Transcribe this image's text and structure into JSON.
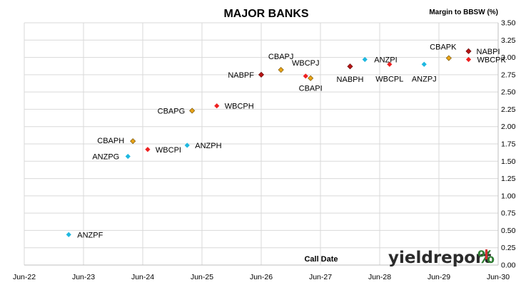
{
  "chart_data": {
    "type": "scatter",
    "title": "MAJOR BANKS",
    "xlabel": "Call Date",
    "ylabel": "Margin to BBSW (%)",
    "xticks": [
      "Jun-22",
      "Jun-23",
      "Jun-24",
      "Jun-25",
      "Jun-26",
      "Jun-27",
      "Jun-28",
      "Jun-29",
      "Jun-30"
    ],
    "xlim": [
      "2022-06",
      "2030-06"
    ],
    "ylim": [
      0,
      3.5
    ],
    "ystep": 0.25,
    "grid": true,
    "colors": {
      "ANZ": "#1fb8e0",
      "CBA": "#e8a317",
      "NAB": "#b81414",
      "WBC": "#ee2020"
    },
    "points": [
      {
        "label": "ANZPF",
        "date": "2023-03",
        "y": 0.44,
        "bank": "ANZ"
      },
      {
        "label": "ANZPG",
        "date": "2024-03",
        "y": 1.57,
        "bank": "ANZ"
      },
      {
        "label": "CBAPH",
        "date": "2024-04",
        "y": 1.79,
        "bank": "CBA"
      },
      {
        "label": "WBCPI",
        "date": "2024-07",
        "y": 1.67,
        "bank": "WBC"
      },
      {
        "label": "ANZPH",
        "date": "2025-03",
        "y": 1.73,
        "bank": "ANZ"
      },
      {
        "label": "CBAPG",
        "date": "2025-04",
        "y": 2.23,
        "bank": "CBA"
      },
      {
        "label": "WBCPH",
        "date": "2025-09",
        "y": 2.3,
        "bank": "WBC"
      },
      {
        "label": "NABPF",
        "date": "2026-06",
        "y": 2.75,
        "bank": "NAB"
      },
      {
        "label": "CBAPJ",
        "date": "2026-10",
        "y": 2.82,
        "bank": "CBA"
      },
      {
        "label": "WBCPJ",
        "date": "2027-03",
        "y": 2.73,
        "bank": "WBC"
      },
      {
        "label": "CBAPI",
        "date": "2027-04",
        "y": 2.7,
        "bank": "CBA"
      },
      {
        "label": "NABPH",
        "date": "2027-12",
        "y": 2.87,
        "bank": "NAB"
      },
      {
        "label": "ANZPI",
        "date": "2028-03",
        "y": 2.97,
        "bank": "ANZ"
      },
      {
        "label": "WBCPL",
        "date": "2028-08",
        "y": 2.9,
        "bank": "WBC"
      },
      {
        "label": "ANZPJ",
        "date": "2029-03",
        "y": 2.9,
        "bank": "ANZ"
      },
      {
        "label": "CBAPK",
        "date": "2029-08",
        "y": 2.99,
        "bank": "CBA"
      },
      {
        "label": "NABPI",
        "date": "2029-12",
        "y": 3.09,
        "bank": "NAB"
      },
      {
        "label": "WBCPK",
        "date": "2029-12",
        "y": 2.97,
        "bank": "WBC"
      }
    ]
  },
  "branding": {
    "logo_text": "yieldreport",
    "logo_symbol": "%"
  }
}
